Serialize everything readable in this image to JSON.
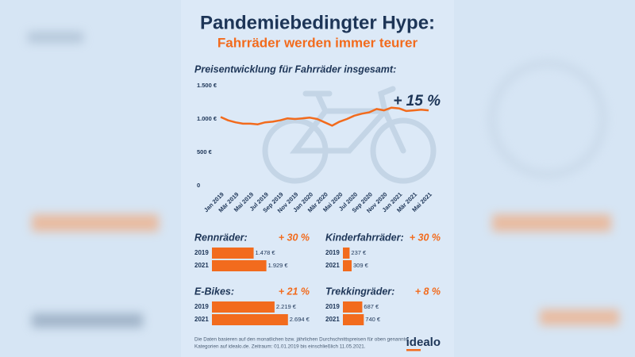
{
  "header": {
    "title": "Pandemiebedingter Hype:",
    "subtitle": "Fahrräder werden immer teurer"
  },
  "chart_data": [
    {
      "type": "line",
      "title": "Preisentwicklung für Fahrräder insgesamt:",
      "annotation": "+ 15 %",
      "categories": [
        "Jan 2019",
        null,
        "Mär 2019",
        null,
        "Mai 2019",
        null,
        "Jul 2019",
        null,
        "Sep 2019",
        null,
        "Nov 2019",
        null,
        "Jan 2020",
        null,
        "Mär 2020",
        null,
        "Mai 2020",
        null,
        "Jul 2020",
        null,
        "Sep 2020",
        null,
        "Nov 2020",
        null,
        "Jan 2021",
        null,
        "Mär 2021",
        null,
        "Mai 2021"
      ],
      "values": [
        1030,
        980,
        950,
        930,
        930,
        920,
        950,
        960,
        980,
        1010,
        1000,
        1010,
        1020,
        1000,
        950,
        900,
        960,
        1000,
        1050,
        1080,
        1100,
        1150,
        1130,
        1170,
        1160,
        1120,
        1130,
        1140,
        1130
      ],
      "color": "#f26b1d",
      "ylim": [
        0,
        1500
      ],
      "yticks": [
        0,
        {
          "value": 500,
          "label": "500 €"
        },
        {
          "value": 1000,
          "label": "1.000 €"
        },
        {
          "value": 1500,
          "label": "1.500 €"
        }
      ]
    },
    {
      "type": "barh",
      "title": "Rennräder:",
      "annotation": "+ 30 %",
      "categories": [
        "2019",
        "2021"
      ],
      "values": [
        1478,
        1929
      ],
      "value_labels": [
        "1.478 €",
        "1.929 €"
      ],
      "color": "#f26b1d",
      "xlim": [
        0,
        2700
      ]
    },
    {
      "type": "barh",
      "title": "Kinderfahrräder:",
      "annotation": "+ 30 %",
      "categories": [
        "2019",
        "2021"
      ],
      "values": [
        237,
        309
      ],
      "value_labels": [
        "237 €",
        "309 €"
      ],
      "color": "#f26b1d",
      "xlim": [
        0,
        2700
      ]
    },
    {
      "type": "barh",
      "title": "E-Bikes:",
      "annotation": "+ 21 %",
      "categories": [
        "2019",
        "2021"
      ],
      "values": [
        2219,
        2694
      ],
      "value_labels": [
        "2.219 €",
        "2.694 €"
      ],
      "color": "#f26b1d",
      "xlim": [
        0,
        2700
      ]
    },
    {
      "type": "barh",
      "title": "Trekkingräder:",
      "annotation": "+ 8 %",
      "categories": [
        "2019",
        "2021"
      ],
      "values": [
        687,
        740
      ],
      "value_labels": [
        "687 €",
        "740 €"
      ],
      "color": "#f26b1d",
      "xlim": [
        0,
        2700
      ]
    }
  ],
  "footer": {
    "note_lines": [
      "Die Daten basieren auf den monatlichen bzw. jährlichen Durchschnittspreisen für oben genannte",
      "Kategorien auf idealo.de. Zeitraum: 01.01.2019 bis einschließlich 11.05.2021."
    ],
    "logo": "idealo"
  }
}
